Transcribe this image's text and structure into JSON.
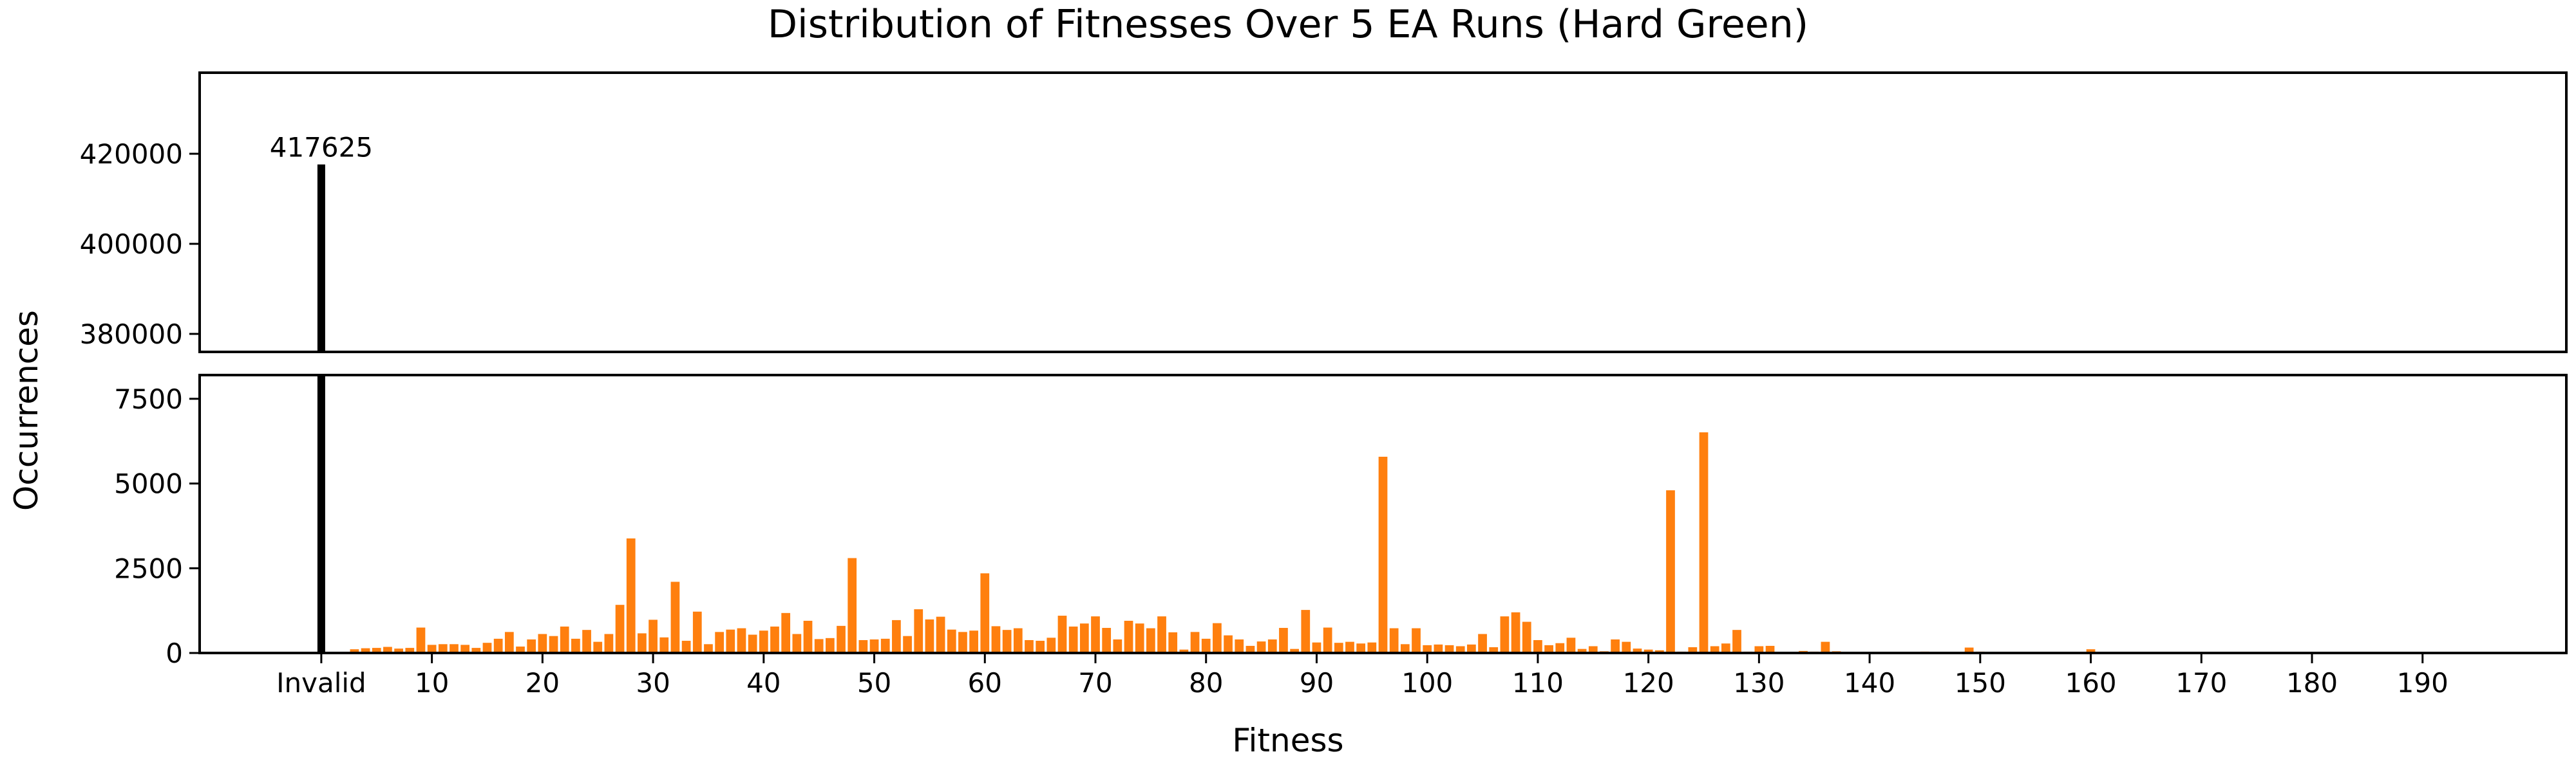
{
  "chart_data": {
    "type": "bar",
    "title": "Distribution of Fitnesses Over 5 EA Runs (Hard Green)",
    "xlabel": "Fitness",
    "ylabel": "Occurrences",
    "broken_y_axis": true,
    "upper_panel": {
      "ylim": [
        376000,
        438000
      ],
      "yticks": [
        380000,
        400000,
        420000
      ]
    },
    "lower_panel": {
      "ylim": [
        0,
        8200
      ],
      "yticks": [
        0,
        2500,
        5000,
        7500
      ]
    },
    "xlim": [
      -11,
      203
    ],
    "xtick_values": [
      0,
      10,
      20,
      30,
      40,
      50,
      60,
      70,
      80,
      90,
      100,
      110,
      120,
      130,
      140,
      150,
      160,
      170,
      180,
      190
    ],
    "xtick_labels": [
      "Invalid",
      "10",
      "20",
      "30",
      "40",
      "50",
      "60",
      "70",
      "80",
      "90",
      "100",
      "110",
      "120",
      "130",
      "140",
      "150",
      "160",
      "170",
      "180",
      "190"
    ],
    "colors": {
      "invalid_bar": "#000000",
      "fitness_bars": "#ff7f0e"
    },
    "invalid": {
      "label": "Invalid",
      "x": 0,
      "value": 417625,
      "value_label": "417625"
    },
    "bars": [
      [
        3,
        110
      ],
      [
        4,
        140
      ],
      [
        5,
        150
      ],
      [
        6,
        180
      ],
      [
        7,
        130
      ],
      [
        8,
        150
      ],
      [
        9,
        750
      ],
      [
        10,
        240
      ],
      [
        11,
        260
      ],
      [
        12,
        260
      ],
      [
        13,
        240
      ],
      [
        14,
        150
      ],
      [
        15,
        300
      ],
      [
        16,
        420
      ],
      [
        17,
        620
      ],
      [
        18,
        190
      ],
      [
        19,
        400
      ],
      [
        20,
        560
      ],
      [
        21,
        500
      ],
      [
        22,
        780
      ],
      [
        23,
        420
      ],
      [
        24,
        680
      ],
      [
        25,
        330
      ],
      [
        26,
        560
      ],
      [
        27,
        1420
      ],
      [
        28,
        3380
      ],
      [
        29,
        580
      ],
      [
        30,
        980
      ],
      [
        31,
        460
      ],
      [
        32,
        2100
      ],
      [
        33,
        360
      ],
      [
        34,
        1220
      ],
      [
        35,
        260
      ],
      [
        36,
        620
      ],
      [
        37,
        690
      ],
      [
        38,
        730
      ],
      [
        39,
        540
      ],
      [
        40,
        660
      ],
      [
        41,
        780
      ],
      [
        42,
        1180
      ],
      [
        43,
        560
      ],
      [
        44,
        950
      ],
      [
        45,
        410
      ],
      [
        46,
        440
      ],
      [
        47,
        800
      ],
      [
        48,
        2800
      ],
      [
        49,
        380
      ],
      [
        50,
        400
      ],
      [
        51,
        420
      ],
      [
        52,
        970
      ],
      [
        53,
        500
      ],
      [
        54,
        1290
      ],
      [
        55,
        990
      ],
      [
        56,
        1070
      ],
      [
        57,
        690
      ],
      [
        58,
        620
      ],
      [
        59,
        660
      ],
      [
        60,
        2350
      ],
      [
        61,
        790
      ],
      [
        62,
        680
      ],
      [
        63,
        730
      ],
      [
        64,
        380
      ],
      [
        65,
        360
      ],
      [
        66,
        450
      ],
      [
        67,
        1100
      ],
      [
        68,
        780
      ],
      [
        69,
        870
      ],
      [
        70,
        1080
      ],
      [
        71,
        740
      ],
      [
        72,
        400
      ],
      [
        73,
        950
      ],
      [
        74,
        870
      ],
      [
        75,
        730
      ],
      [
        76,
        1080
      ],
      [
        77,
        610
      ],
      [
        78,
        100
      ],
      [
        79,
        620
      ],
      [
        80,
        420
      ],
      [
        81,
        880
      ],
      [
        82,
        520
      ],
      [
        83,
        400
      ],
      [
        84,
        210
      ],
      [
        85,
        340
      ],
      [
        86,
        400
      ],
      [
        87,
        740
      ],
      [
        88,
        120
      ],
      [
        89,
        1270
      ],
      [
        90,
        310
      ],
      [
        91,
        750
      ],
      [
        92,
        300
      ],
      [
        93,
        330
      ],
      [
        94,
        280
      ],
      [
        95,
        310
      ],
      [
        96,
        5790
      ],
      [
        97,
        730
      ],
      [
        98,
        260
      ],
      [
        99,
        730
      ],
      [
        100,
        230
      ],
      [
        101,
        250
      ],
      [
        102,
        230
      ],
      [
        103,
        200
      ],
      [
        104,
        250
      ],
      [
        105,
        560
      ],
      [
        106,
        170
      ],
      [
        107,
        1080
      ],
      [
        108,
        1200
      ],
      [
        109,
        920
      ],
      [
        110,
        380
      ],
      [
        111,
        230
      ],
      [
        112,
        290
      ],
      [
        113,
        450
      ],
      [
        114,
        120
      ],
      [
        115,
        200
      ],
      [
        116,
        50
      ],
      [
        117,
        400
      ],
      [
        118,
        330
      ],
      [
        119,
        130
      ],
      [
        120,
        100
      ],
      [
        121,
        80
      ],
      [
        122,
        4800
      ],
      [
        123,
        40
      ],
      [
        124,
        170
      ],
      [
        125,
        6510
      ],
      [
        126,
        200
      ],
      [
        127,
        280
      ],
      [
        128,
        680
      ],
      [
        129,
        40
      ],
      [
        130,
        200
      ],
      [
        131,
        210
      ],
      [
        132,
        30
      ],
      [
        133,
        20
      ],
      [
        134,
        60
      ],
      [
        135,
        40
      ],
      [
        136,
        330
      ],
      [
        137,
        50
      ],
      [
        138,
        30
      ],
      [
        139,
        20
      ],
      [
        140,
        20
      ],
      [
        141,
        20
      ],
      [
        142,
        30
      ],
      [
        145,
        40
      ],
      [
        149,
        160
      ],
      [
        150,
        40
      ],
      [
        151,
        20
      ],
      [
        155,
        20
      ],
      [
        160,
        110
      ],
      [
        161,
        30
      ]
    ]
  }
}
